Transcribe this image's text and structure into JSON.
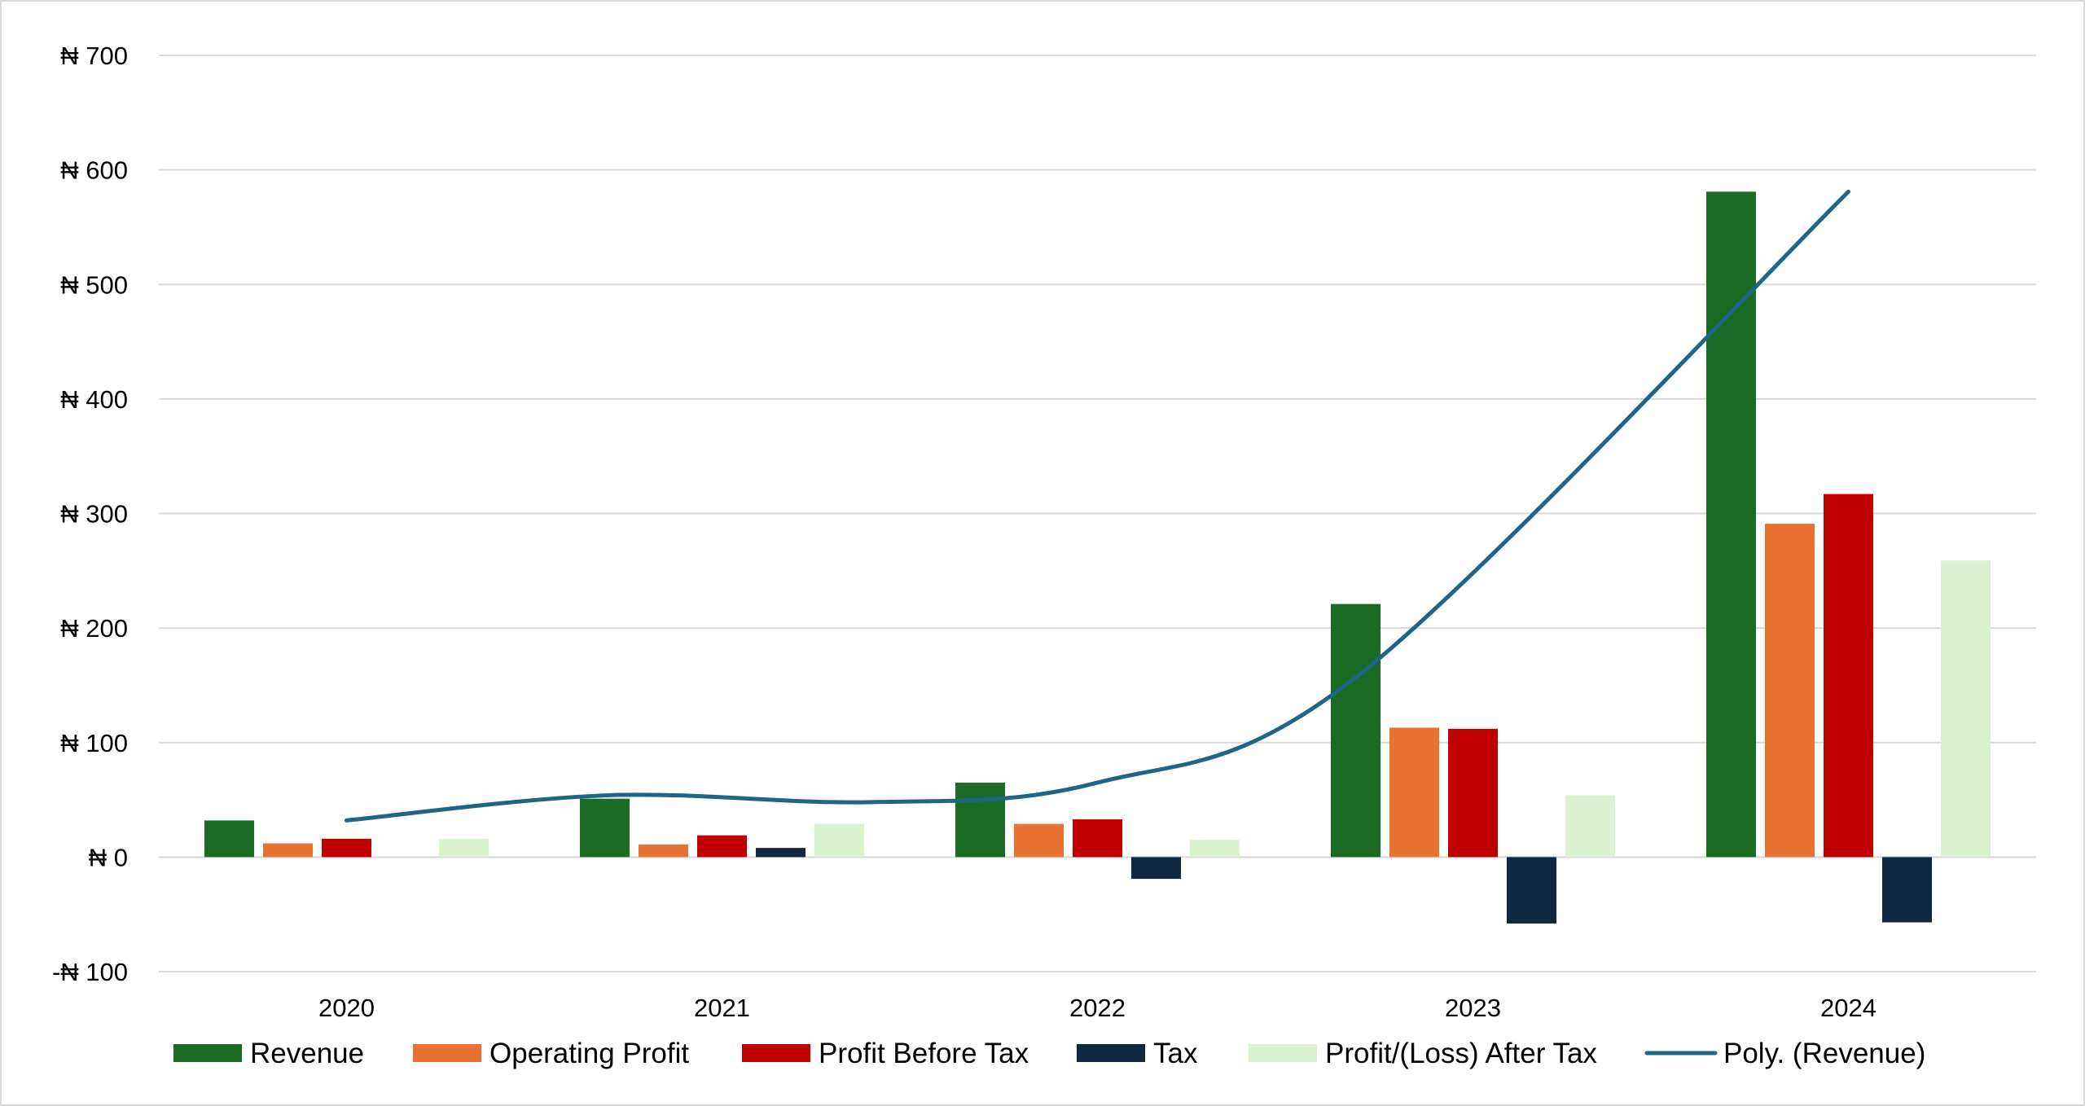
{
  "chart_data": {
    "type": "bar",
    "title": "",
    "xlabel": "",
    "ylabel": "",
    "categories": [
      "2020",
      "2021",
      "2022",
      "2023",
      "2024"
    ],
    "ylim": [
      -100,
      700
    ],
    "yticks": [
      -100,
      0,
      100,
      200,
      300,
      400,
      500,
      600,
      700
    ],
    "ytick_labels": [
      "-₦ 100",
      "₦ 0",
      "₦ 100",
      "₦ 200",
      "₦ 300",
      "₦ 400",
      "₦ 500",
      "₦ 600",
      "₦ 700"
    ],
    "grid": true,
    "legend_position": "bottom",
    "series": [
      {
        "name": "Revenue",
        "color": "#1B6B25",
        "values": [
          32,
          51,
          65,
          221,
          581
        ]
      },
      {
        "name": "Operating Profit",
        "color": "#E97132",
        "values": [
          12,
          11,
          29,
          113,
          291
        ]
      },
      {
        "name": "Profit Before Tax",
        "color": "#C00000",
        "values": [
          16,
          19,
          33,
          112,
          317
        ]
      },
      {
        "name": "Tax",
        "color": "#0E2841",
        "values": [
          0,
          8,
          -19,
          -58,
          -57
        ]
      },
      {
        "name": "Profit/(Loss) After Tax",
        "color": "#DAF2D0",
        "values": [
          16,
          29,
          15,
          54,
          259
        ]
      }
    ],
    "trendline": {
      "name": "Poly. (Revenue)",
      "type": "polynomial",
      "of_series": "Revenue",
      "color": "#1F6587",
      "values": [
        32,
        54,
        48,
        65,
        160,
        581
      ],
      "x_positions": [
        1,
        1.7,
        2.4,
        3,
        3.7,
        5
      ]
    }
  }
}
